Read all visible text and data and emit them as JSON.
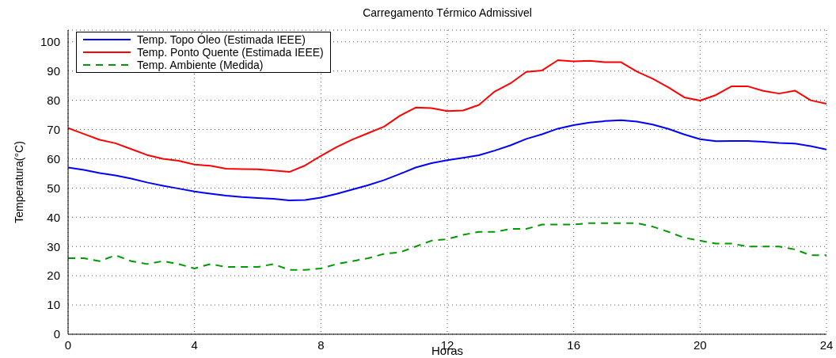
{
  "chart_data": {
    "type": "line",
    "title": "Carregamento Térmico Admissivel",
    "xlabel": "Horas",
    "ylabel": "Temperatura(°C)",
    "x": [
      0,
      0.5,
      1,
      1.5,
      2,
      2.5,
      3,
      3.5,
      4,
      4.5,
      5,
      5.5,
      6,
      6.5,
      7,
      7.5,
      8,
      8.5,
      9,
      9.5,
      10,
      10.5,
      11,
      11.5,
      12,
      12.5,
      13,
      13.5,
      14,
      14.5,
      15,
      15.5,
      16,
      16.5,
      17,
      17.5,
      18,
      18.5,
      19,
      19.5,
      20,
      20.5,
      21,
      21.5,
      22,
      22.5,
      23,
      23.5,
      24
    ],
    "series": [
      {
        "name": "Temp. Topo Óleo (Estimada IEEE)",
        "color": "#0000ff",
        "line_style": "solid",
        "values": [
          57,
          56.2,
          55.1,
          54.3,
          53.2,
          51.9,
          50.8,
          49.8,
          48.8,
          48.1,
          47.4,
          46.9,
          46.6,
          46.3,
          45.8,
          45.9,
          46.7,
          48,
          49.5,
          51,
          52.7,
          54.8,
          57,
          58.5,
          59.5,
          60.3,
          61.2,
          62.8,
          64.6,
          66.8,
          68.4,
          70.3,
          71.5,
          72.4,
          72.9,
          73.2,
          72.7,
          71.7,
          70.2,
          68.3,
          66.7,
          66,
          66.1,
          66.1,
          65.8,
          65.4,
          65.2,
          64.3,
          63.2
        ]
      },
      {
        "name": "Temp. Ponto Quente (Estimada IEEE)",
        "color": "#ff0000",
        "line_style": "solid",
        "values": [
          70.5,
          68.5,
          66.5,
          65.3,
          63.3,
          61.3,
          60,
          59.3,
          58,
          57.6,
          56.6,
          56.5,
          56.4,
          56,
          55.5,
          57.7,
          61,
          64,
          66.6,
          68.8,
          71,
          74.7,
          77.5,
          77.3,
          76.3,
          76.5,
          78.4,
          83,
          85.8,
          89.7,
          90.2,
          93.7,
          93.3,
          93.5,
          93,
          93,
          89.8,
          87.4,
          84.4,
          81,
          79.9,
          81.8,
          84.8,
          84.8,
          83.2,
          82.3,
          83.3,
          80,
          78.8
        ]
      },
      {
        "name": "Temp. Ambiente (Medida)",
        "color": "#009900",
        "line_style": "dashed",
        "values": [
          26,
          26,
          25,
          27,
          25,
          24,
          25,
          24,
          22.5,
          24,
          23,
          23,
          23,
          24,
          22,
          22,
          22.5,
          24,
          25,
          26,
          27.5,
          28,
          30,
          32,
          32.5,
          34,
          35,
          35,
          36,
          36,
          37.5,
          37.5,
          37.5,
          38,
          38,
          38,
          38,
          36.8,
          35,
          33,
          32,
          31,
          31,
          30,
          30,
          30,
          29,
          27,
          27
        ]
      }
    ],
    "xlim": [
      0,
      24
    ],
    "xticks": [
      0,
      4,
      8,
      12,
      16,
      20,
      24
    ],
    "ylim": [
      0,
      104
    ],
    "yticks": [
      0,
      10,
      20,
      30,
      40,
      50,
      60,
      70,
      80,
      90,
      100
    ],
    "grid": true,
    "legend": "top left",
    "marker": "none"
  }
}
